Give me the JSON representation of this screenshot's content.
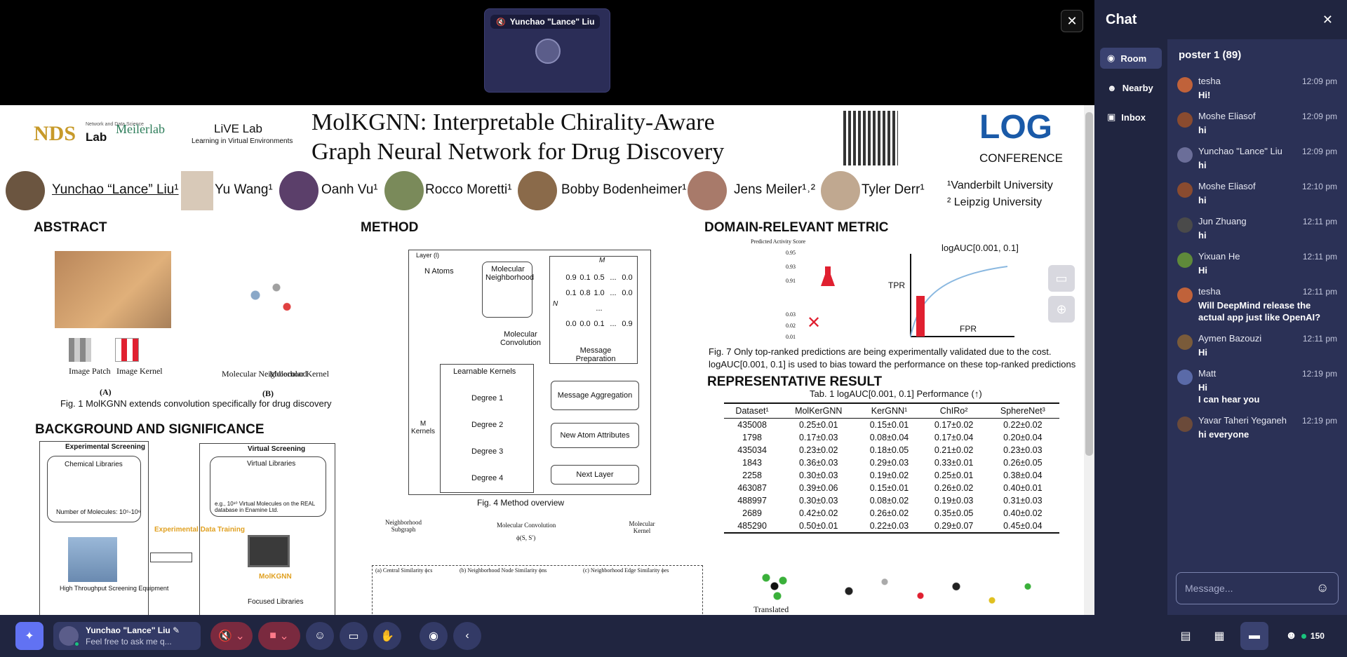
{
  "stage": {
    "close_icon": "close-icon",
    "video_tile": {
      "name": "Yunchao \"Lance\" Liu",
      "mic_icon": "mic-off-icon"
    }
  },
  "poster": {
    "logos": {
      "nds": "NDS",
      "nds_sub": "Network and Data Science",
      "nds_lab": "Lab",
      "meiler": "Meilerlab",
      "live": "LiVE Lab",
      "live_sub": "Learning in Virtual Environments",
      "log": "LOG",
      "conference": "CONFERENCE"
    },
    "title_line1": "MolKGNN: Interpretable Chirality-Aware",
    "title_line2": "Graph Neural Network for Drug Discovery",
    "authors": [
      "Yunchao “Lance” Liu¹",
      "Yu Wang¹",
      "Oanh Vu¹",
      "Rocco Moretti¹",
      "Bobby Bodenheimer¹",
      "Jens Meiler¹˒²",
      "Tyler Derr¹"
    ],
    "affiliations": [
      "¹Vanderbilt University",
      "² Leipzig University"
    ],
    "abstract": {
      "heading": "ABSTRACT",
      "labels": [
        "Image Patch",
        "Image Kernel",
        "Molecular Neighborhood",
        "Molecular Kernel",
        "(A)",
        "(B)"
      ],
      "caption": "Fig. 1 MolKGNN extends convolution specifically for drug discovery"
    },
    "background": {
      "heading": "BACKGROUND AND SIGNIFICANCE",
      "exp_title": "Experimental Screening",
      "exp_lib": "Chemical Libraries",
      "exp_count": "Number of Molecules: 10⁵-10⁶",
      "exp_equipment": "High Throughput Screening Equipment",
      "virt_title": "Virtual Screening",
      "virt_lib": "Virtual Libraries",
      "virt_count": "e.g., 10¹⁰ Virtual Molecules on the REAL database in Enamine Ltd.",
      "arrow_label": "Experimental Data Training",
      "molkgnn": "MolKGNN",
      "focused": "Focused Libraries"
    },
    "method": {
      "heading": "METHOD",
      "layer": "Layer (l)",
      "n_atoms": "N Atoms",
      "mol_neighborhood": "Molecular Neighborhood",
      "mol_convolution": "Molecular Convolution",
      "learnable": "Learnable Kernels",
      "degrees": [
        "Degree 1",
        "Degree 2",
        "Degree 3",
        "Degree 4"
      ],
      "kernels": "M Kernels",
      "matrix_m": "M",
      "matrix_n": "N",
      "matrix": [
        [
          "0.9",
          "0.1",
          "0.5",
          "...",
          "0.0"
        ],
        [
          "0.1",
          "0.8",
          "1.0",
          "...",
          "0.0"
        ],
        [
          "",
          "",
          "...",
          "",
          ""
        ],
        [
          "0.0",
          "0.0",
          "0.1",
          "...",
          "0.9"
        ]
      ],
      "steps": [
        "Message Preparation",
        "Message Aggregation",
        "New Atom Attributes",
        "Next Layer"
      ],
      "caption": "Fig. 4 Method overview",
      "sub_neighborhood": "Neighborhood Subgraph",
      "sub_kernel": "Molecular Kernel",
      "sub_conv": "Molecular Convolution",
      "phi": "ϕ(S, S′)",
      "sims": [
        "(a) Central Similarity ϕcs",
        "(b) Neighborhood Node Similarity ϕns",
        "(c) Neighborhood Edge Similarity ϕes"
      ]
    },
    "metric": {
      "heading": "DOMAIN-RELEVANT METRIC",
      "pred_label": "Predicted Activity Score",
      "scores": [
        "0.95",
        "0.93",
        "0.91",
        "0.03",
        "0.02",
        "0.01"
      ],
      "logauc": "logAUC[0.001, 0.1]",
      "tpr": "TPR",
      "fpr": "FPR",
      "caption1": "Fig. 7 Only top-ranked predictions are being experimentally validated due to the cost.",
      "caption2": "logAUC[0.001, 0.1] is used to bias toward the performance on these top-ranked predictions"
    },
    "result": {
      "heading": "REPRESENTATIVE RESULT",
      "caption": "Tab. 1 logAUC[0.001, 0.1] Performance (↑)",
      "columns": [
        "Dataset¹",
        "MolKerGNN",
        "KerGNN¹",
        "ChIRo²",
        "SphereNet³"
      ],
      "rows": [
        [
          "435008",
          "0.25±0.01",
          "0.15±0.01",
          "0.17±0.02",
          "0.22±0.02"
        ],
        [
          "1798",
          "0.17±0.03",
          "0.08±0.04",
          "0.17±0.04",
          "0.20±0.04"
        ],
        [
          "435034",
          "0.23±0.02",
          "0.18±0.05",
          "0.21±0.02",
          "0.23±0.03"
        ],
        [
          "1843",
          "0.36±0.03",
          "0.29±0.03",
          "0.33±0.01",
          "0.26±0.05"
        ],
        [
          "2258",
          "0.30±0.03",
          "0.19±0.02",
          "0.25±0.01",
          "0.38±0.04"
        ],
        [
          "463087",
          "0.39±0.06",
          "0.15±0.01",
          "0.26±0.02",
          "0.40±0.01"
        ],
        [
          "488997",
          "0.30±0.03",
          "0.08±0.02",
          "0.19±0.03",
          "0.31±0.03"
        ],
        [
          "2689",
          "0.42±0.02",
          "0.26±0.02",
          "0.35±0.05",
          "0.40±0.02"
        ],
        [
          "485290",
          "0.50±0.01",
          "0.22±0.03",
          "0.29±0.07",
          "0.45±0.04"
        ]
      ],
      "translated": "Translated"
    }
  },
  "chat": {
    "title": "Chat",
    "nav": [
      {
        "label": "Room",
        "icon": "room-icon",
        "active": true
      },
      {
        "label": "Nearby",
        "icon": "people-icon",
        "active": false
      },
      {
        "label": "Inbox",
        "icon": "inbox-icon",
        "active": false
      }
    ],
    "room_title": "poster 1 (89)",
    "messages": [
      {
        "who": "tesha",
        "time": "12:09 pm",
        "lines": [
          "Hi!"
        ],
        "color": "#c0623a"
      },
      {
        "who": "Moshe Eliasof",
        "time": "12:09 pm",
        "lines": [
          "hi"
        ],
        "color": "#8a4b2f"
      },
      {
        "who": "Yunchao \"Lance\" Liu",
        "time": "12:09 pm",
        "lines": [
          "hi"
        ],
        "color": "#6b6e99"
      },
      {
        "who": "Moshe Eliasof",
        "time": "12:10 pm",
        "lines": [
          "hi"
        ],
        "color": "#8a4b2f"
      },
      {
        "who": "Jun Zhuang",
        "time": "12:11 pm",
        "lines": [
          "hi"
        ],
        "color": "#4a4a4a"
      },
      {
        "who": "Yixuan He",
        "time": "12:11 pm",
        "lines": [
          "Hi"
        ],
        "color": "#5f8a3a"
      },
      {
        "who": "tesha",
        "time": "12:11 pm",
        "lines": [
          "Will DeepMind release the",
          "actual app just like OpenAI?"
        ],
        "color": "#c0623a"
      },
      {
        "who": "Aymen Bazouzi",
        "time": "12:11 pm",
        "lines": [
          "Hi"
        ],
        "color": "#7a5b3a"
      },
      {
        "who": "Matt",
        "time": "12:19 pm",
        "lines": [
          "Hi",
          "I can hear you"
        ],
        "color": "#5a6aa8"
      },
      {
        "who": "Yavar Taheri Yeganeh",
        "time": "12:19 pm",
        "lines": [
          "hi everyone"
        ],
        "color": "#6b4a3a"
      }
    ],
    "input_placeholder": "Message..."
  },
  "bottombar": {
    "user_name": "Yunchao \"Lance\" Liu",
    "user_status": "Feel free to ask me q...",
    "participant_count": "150"
  }
}
